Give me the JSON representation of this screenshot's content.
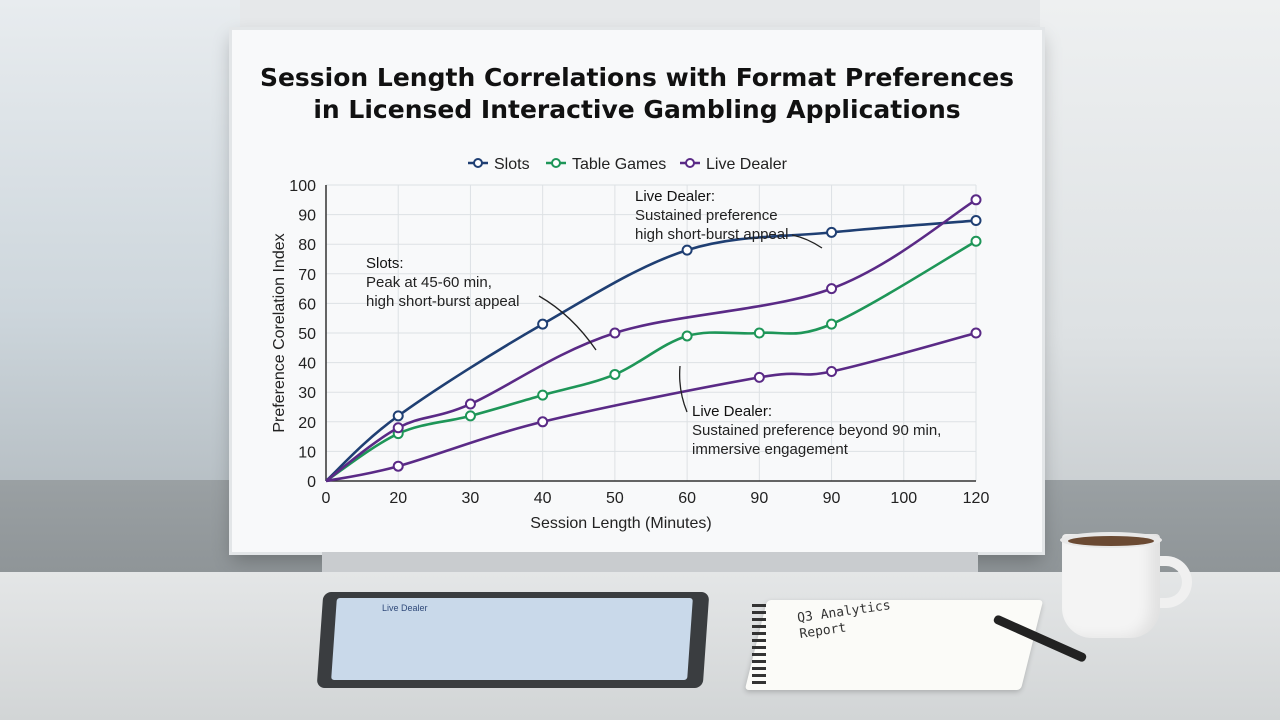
{
  "chart_data": {
    "type": "line",
    "title_line1": "Session Length Correlations with Format Preferences",
    "title_line2": "in Licensed Interactive Gambling Applications",
    "xlabel": "Session Length (Minutes)",
    "ylabel": "Preference Corelation Index",
    "x_ticks": [
      "0",
      "20",
      "30",
      "40",
      "50",
      "60",
      "90",
      "90",
      "100",
      "120"
    ],
    "y_ticks": [
      "0",
      "10",
      "20",
      "30",
      "40",
      "50",
      "60",
      "70",
      "80",
      "90",
      "100"
    ],
    "ylim": [
      0,
      100
    ],
    "grid": true,
    "legend_position": "top",
    "series": [
      {
        "name": "Slots",
        "color": "#1f3f73",
        "values": [
          0,
          22,
          null,
          53,
          null,
          78,
          null,
          84,
          null,
          88
        ],
        "points": [
          [
            0,
            0
          ],
          [
            1,
            22
          ],
          [
            3,
            53
          ],
          [
            5,
            78
          ],
          [
            7,
            84
          ],
          [
            9,
            88
          ]
        ]
      },
      {
        "name": "Table Games",
        "color": "#1e9658",
        "values": [
          0,
          16,
          22,
          29,
          36,
          49,
          50,
          53,
          null,
          81
        ],
        "points": [
          [
            0,
            0
          ],
          [
            1,
            16
          ],
          [
            2,
            22
          ],
          [
            3,
            29
          ],
          [
            4,
            36
          ],
          [
            5,
            49
          ],
          [
            6,
            50
          ],
          [
            7,
            53
          ],
          [
            9,
            81
          ]
        ]
      },
      {
        "name": "Live Dealer",
        "color": "#5a2a86",
        "values": [
          0,
          18,
          26,
          null,
          50,
          null,
          null,
          65,
          null,
          95
        ],
        "points": [
          [
            0,
            0
          ],
          [
            1,
            18
          ],
          [
            2,
            26
          ],
          [
            4,
            50
          ],
          [
            7,
            65
          ],
          [
            9,
            95
          ]
        ]
      },
      {
        "name": "Live Dealer (lower)",
        "color": "#5a2a86",
        "values": [
          0,
          5,
          null,
          20,
          null,
          null,
          35,
          37,
          null,
          50
        ],
        "points": [
          [
            0,
            0
          ],
          [
            1,
            5
          ],
          [
            3,
            20
          ],
          [
            6,
            35
          ],
          [
            7,
            37
          ],
          [
            9,
            50
          ]
        ]
      }
    ],
    "annotations": [
      {
        "title": "Live Dealer:",
        "lines": [
          "Sustained preference",
          "high short-burst appeal"
        ]
      },
      {
        "title": "Slots:",
        "lines": [
          "Peak at 45-60 min,",
          "high short-burst appeal"
        ]
      },
      {
        "title": "Live Dealer:",
        "lines": [
          "Sustained preference beyond 90 min,",
          "immersive engagement"
        ]
      }
    ]
  },
  "scene": {
    "tablet_title": "Live Dealer",
    "notebook_text": "Q3 Analytics Report"
  }
}
